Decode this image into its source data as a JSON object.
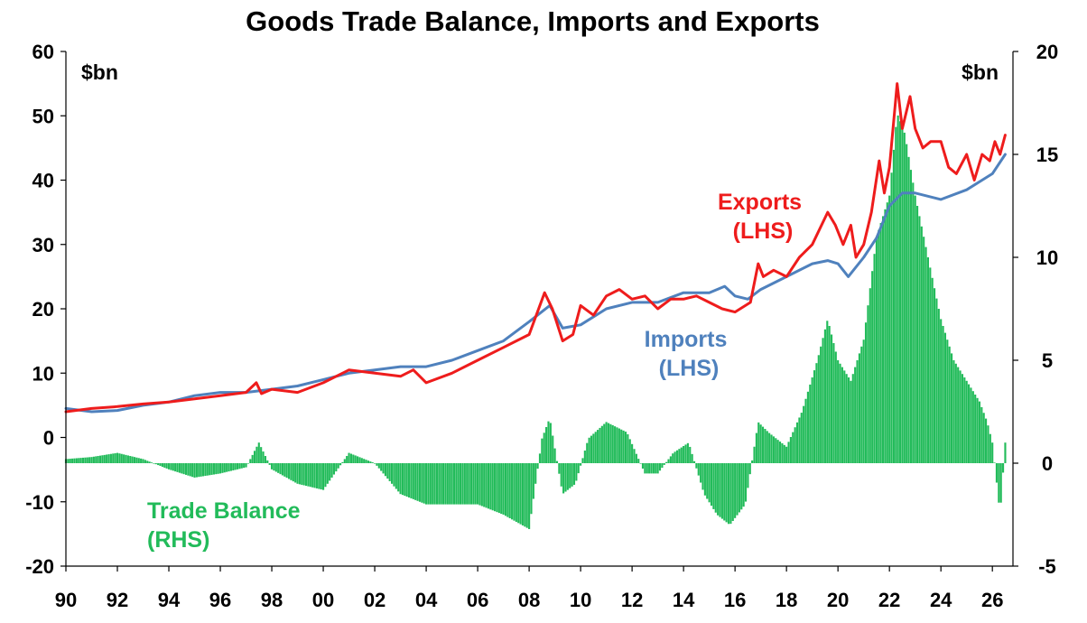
{
  "colors": {
    "exports": "#ee1c1c",
    "imports": "#4f81bd",
    "trade_balance": "#22bb5a",
    "axis": "#000000"
  },
  "chart_data": {
    "type": "line",
    "title": "Goods Trade Balance, Imports and Exports",
    "left_axis_unit": "$bn",
    "right_axis_unit": "$bn",
    "left_ylim": [
      -20,
      60
    ],
    "left_yticks": [
      -20,
      -10,
      0,
      10,
      20,
      30,
      40,
      50,
      60
    ],
    "right_ylim": [
      -5,
      20
    ],
    "right_yticks": [
      -5,
      0,
      5,
      10,
      15,
      20
    ],
    "xlim": [
      1990,
      2026.8
    ],
    "xticks": [
      1990,
      1992,
      1994,
      1996,
      1998,
      2000,
      2002,
      2004,
      2006,
      2008,
      2010,
      2012,
      2014,
      2016,
      2018,
      2020,
      2022,
      2024,
      2026
    ],
    "xtick_labels": [
      "90",
      "92",
      "94",
      "96",
      "98",
      "00",
      "02",
      "04",
      "06",
      "08",
      "10",
      "12",
      "14",
      "16",
      "18",
      "20",
      "22",
      "24",
      "26"
    ],
    "grid": false,
    "series": [
      {
        "name": "Exports (LHS)",
        "label_lines": [
          "Exports",
          "(LHS)"
        ],
        "axis": "left",
        "kind": "line",
        "x": [
          1990,
          1991,
          1992,
          1993,
          1994,
          1995,
          1996,
          1997,
          1997.4,
          1997.6,
          1998,
          1999,
          2000,
          2001,
          2002,
          2003,
          2003.5,
          2004,
          2005,
          2006,
          2007,
          2008,
          2008.6,
          2008.9,
          2009.3,
          2009.7,
          2010,
          2010.5,
          2011,
          2011.5,
          2012,
          2012.5,
          2013,
          2013.5,
          2014,
          2014.5,
          2015,
          2015.5,
          2016,
          2016.6,
          2016.9,
          2017.1,
          2017.5,
          2018,
          2018.5,
          2019,
          2019.6,
          2019.9,
          2020.2,
          2020.5,
          2020.7,
          2021,
          2021.3,
          2021.6,
          2021.8,
          2022,
          2022.3,
          2022.5,
          2022.8,
          2023,
          2023.3,
          2023.6,
          2024,
          2024.3,
          2024.6,
          2025,
          2025.3,
          2025.6,
          2025.9,
          2026.1,
          2026.3,
          2026.5
        ],
        "y": [
          4,
          4.5,
          4.8,
          5.2,
          5.5,
          6,
          6.5,
          7,
          8.5,
          6.8,
          7.5,
          7,
          8.5,
          10.5,
          10,
          9.5,
          10.5,
          8.5,
          10,
          12,
          14,
          16,
          22.5,
          20,
          15,
          16,
          20.5,
          19,
          22,
          23,
          21.5,
          22,
          20,
          21.5,
          21.5,
          22,
          21,
          20,
          19.5,
          21,
          27,
          25,
          26,
          25,
          28,
          30,
          35,
          33,
          30,
          33,
          28,
          30,
          35,
          43,
          38,
          42,
          55,
          48,
          53,
          48,
          45,
          46,
          46,
          42,
          41,
          44,
          40,
          44,
          43,
          46,
          44,
          47
        ]
      },
      {
        "name": "Imports (LHS)",
        "label_lines": [
          "Imports",
          "(LHS)"
        ],
        "axis": "left",
        "kind": "line",
        "x": [
          1990,
          1991,
          1992,
          1993,
          1994,
          1995,
          1996,
          1997,
          1998,
          1999,
          2000,
          2001,
          2002,
          2003,
          2004,
          2005,
          2006,
          2007,
          2008,
          2008.8,
          2009.3,
          2010,
          2011,
          2012,
          2013,
          2014,
          2015,
          2015.6,
          2016,
          2016.5,
          2017,
          2018,
          2019,
          2019.6,
          2020,
          2020.4,
          2021,
          2021.5,
          2022,
          2022.5,
          2023,
          2024,
          2025,
          2025.6,
          2026,
          2026.5
        ],
        "y": [
          4.5,
          4,
          4.2,
          5,
          5.5,
          6.5,
          7,
          7,
          7.5,
          8,
          9,
          10,
          10.5,
          11,
          11,
          12,
          13.5,
          15,
          18,
          20.5,
          17,
          17.5,
          20,
          21,
          21,
          22.5,
          22.5,
          23.5,
          22,
          21.5,
          23,
          25,
          27,
          27.5,
          27,
          25,
          28,
          31,
          36,
          38,
          38,
          37,
          38.5,
          40,
          41,
          44
        ]
      },
      {
        "name": "Trade Balance (RHS)",
        "label_lines": [
          "Trade Balance",
          "(RHS)"
        ],
        "axis": "right",
        "kind": "bar",
        "x": [
          1990,
          1991,
          1992,
          1993,
          1994,
          1995,
          1996,
          1997,
          1997.5,
          1998,
          1999,
          2000,
          2001,
          2002,
          2003,
          2004,
          2005,
          2006,
          2007,
          2008,
          2008.5,
          2008.8,
          2009.3,
          2009.8,
          2010.3,
          2011,
          2011.8,
          2012.5,
          2013,
          2013.6,
          2014.2,
          2014.8,
          2015.3,
          2015.8,
          2016.4,
          2016.9,
          2017.3,
          2018,
          2018.6,
          2019.2,
          2019.6,
          2020,
          2020.5,
          2021,
          2021.5,
          2022,
          2022.3,
          2022.6,
          2023,
          2023.5,
          2024,
          2024.5,
          2025,
          2025.5,
          2025.8,
          2026,
          2026.3,
          2026.5
        ],
        "y": [
          0.2,
          0.3,
          0.5,
          0.2,
          -0.3,
          -0.7,
          -0.5,
          -0.2,
          1,
          -0.3,
          -1,
          -1.3,
          0.5,
          0,
          -1.5,
          -2,
          -2,
          -2,
          -2.5,
          -3.2,
          1.2,
          2.2,
          -1.5,
          -1,
          1.2,
          2,
          1.5,
          -0.5,
          -0.5,
          0.5,
          1,
          -1.5,
          -2.5,
          -3,
          -2,
          2,
          1.5,
          0.8,
          2.5,
          5,
          7,
          5,
          4,
          6,
          11,
          13,
          17,
          16,
          13,
          10,
          7,
          5,
          4,
          3,
          2,
          1,
          -2.5,
          1
        ]
      }
    ]
  }
}
